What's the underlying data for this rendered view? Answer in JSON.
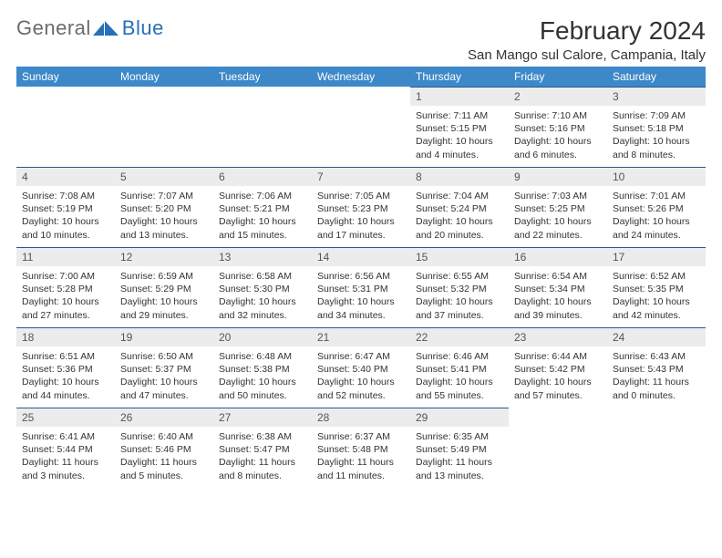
{
  "logo": {
    "general": "General",
    "blue": "Blue"
  },
  "title": "February 2024",
  "location": "San Mango sul Calore, Campania, Italy",
  "colors": {
    "header_bg": "#3d88c9",
    "header_text": "#ffffff",
    "daynum_bg": "#ececec",
    "row_divider": "#1f5d96",
    "text": "#333333",
    "logo_gray": "#6b6b6b",
    "logo_blue": "#2670b8"
  },
  "weekdays": [
    "Sunday",
    "Monday",
    "Tuesday",
    "Wednesday",
    "Thursday",
    "Friday",
    "Saturday"
  ],
  "weeks": [
    [
      null,
      null,
      null,
      null,
      {
        "n": "1",
        "sr": "Sunrise: 7:11 AM",
        "ss": "Sunset: 5:15 PM",
        "dl": "Daylight: 10 hours and 4 minutes."
      },
      {
        "n": "2",
        "sr": "Sunrise: 7:10 AM",
        "ss": "Sunset: 5:16 PM",
        "dl": "Daylight: 10 hours and 6 minutes."
      },
      {
        "n": "3",
        "sr": "Sunrise: 7:09 AM",
        "ss": "Sunset: 5:18 PM",
        "dl": "Daylight: 10 hours and 8 minutes."
      }
    ],
    [
      {
        "n": "4",
        "sr": "Sunrise: 7:08 AM",
        "ss": "Sunset: 5:19 PM",
        "dl": "Daylight: 10 hours and 10 minutes."
      },
      {
        "n": "5",
        "sr": "Sunrise: 7:07 AM",
        "ss": "Sunset: 5:20 PM",
        "dl": "Daylight: 10 hours and 13 minutes."
      },
      {
        "n": "6",
        "sr": "Sunrise: 7:06 AM",
        "ss": "Sunset: 5:21 PM",
        "dl": "Daylight: 10 hours and 15 minutes."
      },
      {
        "n": "7",
        "sr": "Sunrise: 7:05 AM",
        "ss": "Sunset: 5:23 PM",
        "dl": "Daylight: 10 hours and 17 minutes."
      },
      {
        "n": "8",
        "sr": "Sunrise: 7:04 AM",
        "ss": "Sunset: 5:24 PM",
        "dl": "Daylight: 10 hours and 20 minutes."
      },
      {
        "n": "9",
        "sr": "Sunrise: 7:03 AM",
        "ss": "Sunset: 5:25 PM",
        "dl": "Daylight: 10 hours and 22 minutes."
      },
      {
        "n": "10",
        "sr": "Sunrise: 7:01 AM",
        "ss": "Sunset: 5:26 PM",
        "dl": "Daylight: 10 hours and 24 minutes."
      }
    ],
    [
      {
        "n": "11",
        "sr": "Sunrise: 7:00 AM",
        "ss": "Sunset: 5:28 PM",
        "dl": "Daylight: 10 hours and 27 minutes."
      },
      {
        "n": "12",
        "sr": "Sunrise: 6:59 AM",
        "ss": "Sunset: 5:29 PM",
        "dl": "Daylight: 10 hours and 29 minutes."
      },
      {
        "n": "13",
        "sr": "Sunrise: 6:58 AM",
        "ss": "Sunset: 5:30 PM",
        "dl": "Daylight: 10 hours and 32 minutes."
      },
      {
        "n": "14",
        "sr": "Sunrise: 6:56 AM",
        "ss": "Sunset: 5:31 PM",
        "dl": "Daylight: 10 hours and 34 minutes."
      },
      {
        "n": "15",
        "sr": "Sunrise: 6:55 AM",
        "ss": "Sunset: 5:32 PM",
        "dl": "Daylight: 10 hours and 37 minutes."
      },
      {
        "n": "16",
        "sr": "Sunrise: 6:54 AM",
        "ss": "Sunset: 5:34 PM",
        "dl": "Daylight: 10 hours and 39 minutes."
      },
      {
        "n": "17",
        "sr": "Sunrise: 6:52 AM",
        "ss": "Sunset: 5:35 PM",
        "dl": "Daylight: 10 hours and 42 minutes."
      }
    ],
    [
      {
        "n": "18",
        "sr": "Sunrise: 6:51 AM",
        "ss": "Sunset: 5:36 PM",
        "dl": "Daylight: 10 hours and 44 minutes."
      },
      {
        "n": "19",
        "sr": "Sunrise: 6:50 AM",
        "ss": "Sunset: 5:37 PM",
        "dl": "Daylight: 10 hours and 47 minutes."
      },
      {
        "n": "20",
        "sr": "Sunrise: 6:48 AM",
        "ss": "Sunset: 5:38 PM",
        "dl": "Daylight: 10 hours and 50 minutes."
      },
      {
        "n": "21",
        "sr": "Sunrise: 6:47 AM",
        "ss": "Sunset: 5:40 PM",
        "dl": "Daylight: 10 hours and 52 minutes."
      },
      {
        "n": "22",
        "sr": "Sunrise: 6:46 AM",
        "ss": "Sunset: 5:41 PM",
        "dl": "Daylight: 10 hours and 55 minutes."
      },
      {
        "n": "23",
        "sr": "Sunrise: 6:44 AM",
        "ss": "Sunset: 5:42 PM",
        "dl": "Daylight: 10 hours and 57 minutes."
      },
      {
        "n": "24",
        "sr": "Sunrise: 6:43 AM",
        "ss": "Sunset: 5:43 PM",
        "dl": "Daylight: 11 hours and 0 minutes."
      }
    ],
    [
      {
        "n": "25",
        "sr": "Sunrise: 6:41 AM",
        "ss": "Sunset: 5:44 PM",
        "dl": "Daylight: 11 hours and 3 minutes."
      },
      {
        "n": "26",
        "sr": "Sunrise: 6:40 AM",
        "ss": "Sunset: 5:46 PM",
        "dl": "Daylight: 11 hours and 5 minutes."
      },
      {
        "n": "27",
        "sr": "Sunrise: 6:38 AM",
        "ss": "Sunset: 5:47 PM",
        "dl": "Daylight: 11 hours and 8 minutes."
      },
      {
        "n": "28",
        "sr": "Sunrise: 6:37 AM",
        "ss": "Sunset: 5:48 PM",
        "dl": "Daylight: 11 hours and 11 minutes."
      },
      {
        "n": "29",
        "sr": "Sunrise: 6:35 AM",
        "ss": "Sunset: 5:49 PM",
        "dl": "Daylight: 11 hours and 13 minutes."
      },
      null,
      null
    ]
  ]
}
